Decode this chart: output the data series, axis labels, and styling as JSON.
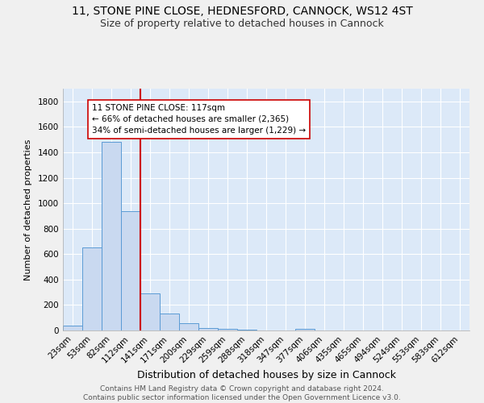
{
  "title": "11, STONE PINE CLOSE, HEDNESFORD, CANNOCK, WS12 4ST",
  "subtitle": "Size of property relative to detached houses in Cannock",
  "xlabel": "Distribution of detached houses by size in Cannock",
  "ylabel": "Number of detached properties",
  "bar_labels": [
    "23sqm",
    "53sqm",
    "82sqm",
    "112sqm",
    "141sqm",
    "171sqm",
    "200sqm",
    "229sqm",
    "259sqm",
    "288sqm",
    "318sqm",
    "347sqm",
    "377sqm",
    "406sqm",
    "435sqm",
    "465sqm",
    "494sqm",
    "524sqm",
    "553sqm",
    "583sqm",
    "612sqm"
  ],
  "bar_values": [
    40,
    650,
    1480,
    940,
    290,
    130,
    60,
    20,
    10,
    5,
    3,
    2,
    15,
    2,
    0,
    0,
    0,
    0,
    0,
    0,
    0
  ],
  "bar_color": "#c9d9f0",
  "bar_edge_color": "#5b9bd5",
  "vline_x_index": 3,
  "vline_color": "#cc0000",
  "annotation_text": "11 STONE PINE CLOSE: 117sqm\n← 66% of detached houses are smaller (2,365)\n34% of semi-detached houses are larger (1,229) →",
  "annotation_box_color": "#ffffff",
  "annotation_box_edge": "#cc0000",
  "ylim": [
    0,
    1900
  ],
  "yticks": [
    0,
    200,
    400,
    600,
    800,
    1000,
    1200,
    1400,
    1600,
    1800
  ],
  "background_color": "#dce9f8",
  "plot_bg_color": "#dce9f8",
  "fig_bg_color": "#f0f0f0",
  "grid_color": "#ffffff",
  "footer": "Contains HM Land Registry data © Crown copyright and database right 2024.\nContains public sector information licensed under the Open Government Licence v3.0.",
  "title_fontsize": 10,
  "subtitle_fontsize": 9,
  "xlabel_fontsize": 9,
  "ylabel_fontsize": 8,
  "tick_fontsize": 7.5,
  "footer_fontsize": 6.5,
  "annotation_fontsize": 7.5
}
